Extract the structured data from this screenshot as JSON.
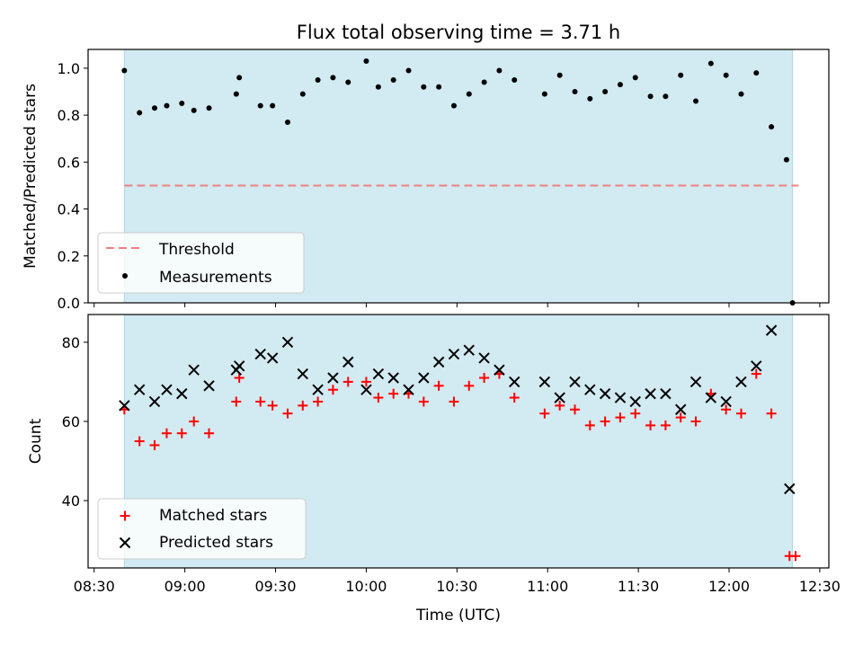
{
  "title": "Flux total observing time = 3.71 h",
  "xlabel": "Time (UTC)",
  "x_tick_labels": [
    "08:30",
    "09:00",
    "09:30",
    "10:00",
    "10:30",
    "11:00",
    "11:30",
    "12:00",
    "12:30"
  ],
  "colors": {
    "shade": "#add8e6",
    "threshold": "#f08080",
    "matched": "#ff0000",
    "predicted": "#000000",
    "measurement": "#000000"
  },
  "chart_data": [
    {
      "type": "scatter",
      "ylabel": "Matched/Predicted stars",
      "xlim": [
        "08:28",
        "12:33"
      ],
      "ylim": [
        0,
        1.08
      ],
      "yticks": [
        "0.0",
        "0.2",
        "0.4",
        "0.6",
        "0.8",
        "1.0"
      ],
      "shaded_span": [
        "08:40",
        "12:21"
      ],
      "legend": {
        "placement": "lower-left",
        "entries": [
          "Threshold",
          "Measurements"
        ]
      },
      "threshold": {
        "name": "Threshold",
        "y": 0.5,
        "x_range": [
          "08:40",
          "12:23"
        ]
      },
      "series": [
        {
          "name": "Measurements",
          "points": [
            [
              "08:40",
              0.99
            ],
            [
              "08:45",
              0.81
            ],
            [
              "08:50",
              0.83
            ],
            [
              "08:54",
              0.84
            ],
            [
              "08:59",
              0.85
            ],
            [
              "09:03",
              0.82
            ],
            [
              "09:08",
              0.83
            ],
            [
              "09:17",
              0.89
            ],
            [
              "09:18",
              0.96
            ],
            [
              "09:25",
              0.84
            ],
            [
              "09:29",
              0.84
            ],
            [
              "09:34",
              0.77
            ],
            [
              "09:39",
              0.89
            ],
            [
              "09:44",
              0.95
            ],
            [
              "09:49",
              0.96
            ],
            [
              "09:54",
              0.94
            ],
            [
              "10:00",
              1.03
            ],
            [
              "10:04",
              0.92
            ],
            [
              "10:09",
              0.95
            ],
            [
              "10:14",
              0.99
            ],
            [
              "10:19",
              0.92
            ],
            [
              "10:24",
              0.92
            ],
            [
              "10:29",
              0.84
            ],
            [
              "10:34",
              0.89
            ],
            [
              "10:39",
              0.94
            ],
            [
              "10:44",
              0.99
            ],
            [
              "10:49",
              0.95
            ],
            [
              "10:59",
              0.89
            ],
            [
              "11:04",
              0.97
            ],
            [
              "11:09",
              0.9
            ],
            [
              "11:14",
              0.87
            ],
            [
              "11:19",
              0.9
            ],
            [
              "11:24",
              0.93
            ],
            [
              "11:29",
              0.96
            ],
            [
              "11:34",
              0.88
            ],
            [
              "11:39",
              0.88
            ],
            [
              "11:44",
              0.97
            ],
            [
              "11:49",
              0.86
            ],
            [
              "11:54",
              1.02
            ],
            [
              "11:59",
              0.97
            ],
            [
              "12:04",
              0.89
            ],
            [
              "12:09",
              0.98
            ],
            [
              "12:14",
              0.75
            ],
            [
              "12:19",
              0.61
            ],
            [
              "12:21",
              0.0
            ]
          ]
        }
      ]
    },
    {
      "type": "scatter",
      "ylabel": "Count",
      "xlim": [
        "08:28",
        "12:33"
      ],
      "ylim": [
        23,
        87
      ],
      "yticks": [
        "40",
        "60",
        "80"
      ],
      "shaded_span": [
        "08:40",
        "12:21"
      ],
      "legend": {
        "placement": "lower-left",
        "entries": [
          "Matched stars",
          "Predicted stars"
        ]
      },
      "series": [
        {
          "name": "Matched stars",
          "marker": "plus",
          "points": [
            [
              "08:40",
              63
            ],
            [
              "08:45",
              55
            ],
            [
              "08:50",
              54
            ],
            [
              "08:54",
              57
            ],
            [
              "08:59",
              57
            ],
            [
              "09:03",
              60
            ],
            [
              "09:08",
              57
            ],
            [
              "09:17",
              65
            ],
            [
              "09:18",
              71
            ],
            [
              "09:25",
              65
            ],
            [
              "09:29",
              64
            ],
            [
              "09:34",
              62
            ],
            [
              "09:39",
              64
            ],
            [
              "09:44",
              65
            ],
            [
              "09:49",
              68
            ],
            [
              "09:54",
              70
            ],
            [
              "10:00",
              70
            ],
            [
              "10:04",
              66
            ],
            [
              "10:09",
              67
            ],
            [
              "10:14",
              67
            ],
            [
              "10:19",
              65
            ],
            [
              "10:24",
              69
            ],
            [
              "10:29",
              65
            ],
            [
              "10:34",
              69
            ],
            [
              "10:39",
              71
            ],
            [
              "10:44",
              72
            ],
            [
              "10:49",
              66
            ],
            [
              "10:59",
              62
            ],
            [
              "11:04",
              64
            ],
            [
              "11:09",
              63
            ],
            [
              "11:14",
              59
            ],
            [
              "11:19",
              60
            ],
            [
              "11:24",
              61
            ],
            [
              "11:29",
              62
            ],
            [
              "11:34",
              59
            ],
            [
              "11:39",
              59
            ],
            [
              "11:44",
              61
            ],
            [
              "11:49",
              60
            ],
            [
              "11:54",
              67
            ],
            [
              "11:59",
              63
            ],
            [
              "12:04",
              62
            ],
            [
              "12:09",
              72
            ],
            [
              "12:14",
              62
            ],
            [
              "12:20",
              26
            ],
            [
              "12:22",
              26
            ]
          ]
        },
        {
          "name": "Predicted stars",
          "marker": "x",
          "points": [
            [
              "08:40",
              64
            ],
            [
              "08:45",
              68
            ],
            [
              "08:50",
              65
            ],
            [
              "08:54",
              68
            ],
            [
              "08:59",
              67
            ],
            [
              "09:03",
              73
            ],
            [
              "09:08",
              69
            ],
            [
              "09:17",
              73
            ],
            [
              "09:18",
              74
            ],
            [
              "09:25",
              77
            ],
            [
              "09:29",
              76
            ],
            [
              "09:34",
              80
            ],
            [
              "09:39",
              72
            ],
            [
              "09:44",
              68
            ],
            [
              "09:49",
              71
            ],
            [
              "09:54",
              75
            ],
            [
              "10:00",
              68
            ],
            [
              "10:04",
              72
            ],
            [
              "10:09",
              71
            ],
            [
              "10:14",
              68
            ],
            [
              "10:19",
              71
            ],
            [
              "10:24",
              75
            ],
            [
              "10:29",
              77
            ],
            [
              "10:34",
              78
            ],
            [
              "10:39",
              76
            ],
            [
              "10:44",
              73
            ],
            [
              "10:49",
              70
            ],
            [
              "10:59",
              70
            ],
            [
              "11:04",
              66
            ],
            [
              "11:09",
              70
            ],
            [
              "11:14",
              68
            ],
            [
              "11:19",
              67
            ],
            [
              "11:24",
              66
            ],
            [
              "11:29",
              65
            ],
            [
              "11:34",
              67
            ],
            [
              "11:39",
              67
            ],
            [
              "11:44",
              63
            ],
            [
              "11:49",
              70
            ],
            [
              "11:54",
              66
            ],
            [
              "11:59",
              65
            ],
            [
              "12:04",
              70
            ],
            [
              "12:09",
              74
            ],
            [
              "12:14",
              83
            ],
            [
              "12:20",
              43
            ]
          ]
        }
      ]
    }
  ]
}
